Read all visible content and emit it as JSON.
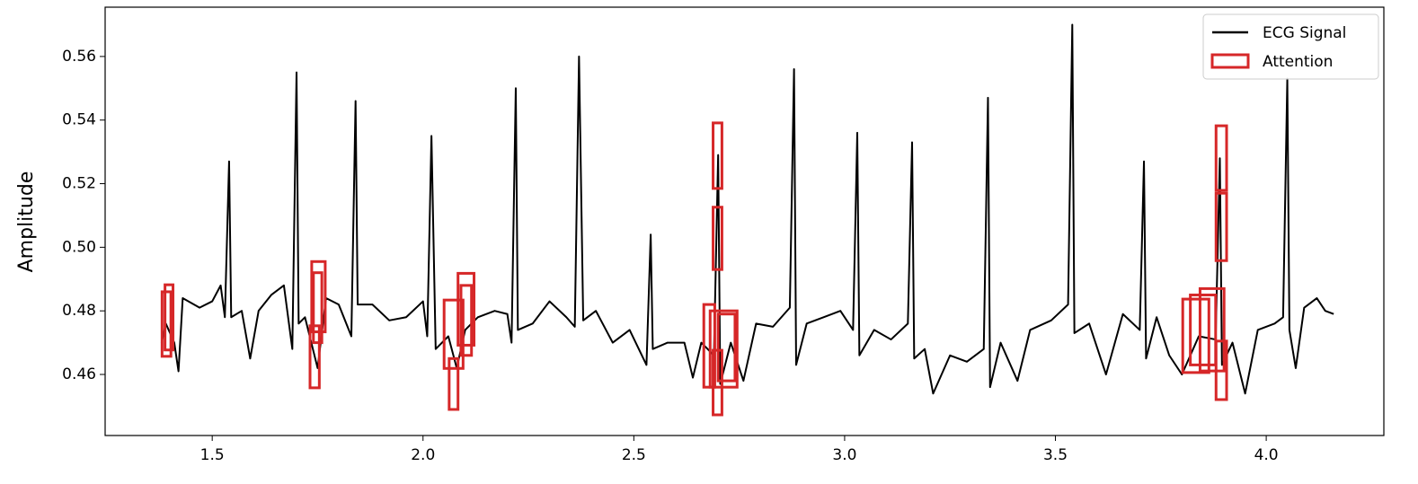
{
  "chart_data": {
    "type": "line",
    "ylabel": "Amplitude",
    "x": [
      1.38,
      1.39,
      1.41,
      1.42,
      1.43,
      1.47,
      1.5,
      1.52,
      1.53,
      1.54,
      1.545,
      1.57,
      1.59,
      1.61,
      1.64,
      1.67,
      1.69,
      1.7,
      1.705,
      1.72,
      1.75,
      1.77,
      1.8,
      1.83,
      1.84,
      1.845,
      1.88,
      1.92,
      1.96,
      2.0,
      2.01,
      2.02,
      2.03,
      2.06,
      2.08,
      2.1,
      2.13,
      2.17,
      2.2,
      2.21,
      2.22,
      2.225,
      2.26,
      2.3,
      2.34,
      2.36,
      2.37,
      2.38,
      2.41,
      2.45,
      2.49,
      2.53,
      2.54,
      2.545,
      2.58,
      2.62,
      2.64,
      2.66,
      2.69,
      2.7,
      2.705,
      2.73,
      2.76,
      2.79,
      2.83,
      2.87,
      2.88,
      2.885,
      2.91,
      2.95,
      2.99,
      3.02,
      3.03,
      3.035,
      3.07,
      3.11,
      3.15,
      3.16,
      3.165,
      3.19,
      3.21,
      3.25,
      3.29,
      3.33,
      3.34,
      3.345,
      3.37,
      3.41,
      3.44,
      3.49,
      3.53,
      3.54,
      3.545,
      3.58,
      3.62,
      3.66,
      3.7,
      3.71,
      3.715,
      3.74,
      3.77,
      3.8,
      3.84,
      3.88,
      3.89,
      3.895,
      3.92,
      3.95,
      3.98,
      4.02,
      4.04,
      4.05,
      4.055,
      4.07,
      4.09,
      4.12,
      4.14,
      4.16
    ],
    "series": [
      {
        "name": "ECG Signal",
        "color": "#000000",
        "values": [
          0.47,
          0.476,
          0.47,
          0.461,
          0.484,
          0.481,
          0.483,
          0.488,
          0.478,
          0.527,
          0.478,
          0.48,
          0.465,
          0.48,
          0.485,
          0.488,
          0.468,
          0.555,
          0.476,
          0.478,
          0.462,
          0.484,
          0.482,
          0.472,
          0.546,
          0.482,
          0.482,
          0.477,
          0.478,
          0.483,
          0.472,
          0.535,
          0.468,
          0.472,
          0.462,
          0.474,
          0.478,
          0.48,
          0.479,
          0.47,
          0.55,
          0.474,
          0.476,
          0.483,
          0.478,
          0.475,
          0.56,
          0.477,
          0.48,
          0.47,
          0.474,
          0.463,
          0.504,
          0.468,
          0.47,
          0.47,
          0.459,
          0.47,
          0.466,
          0.529,
          0.457,
          0.47,
          0.458,
          0.476,
          0.475,
          0.481,
          0.556,
          0.463,
          0.476,
          0.478,
          0.48,
          0.474,
          0.536,
          0.466,
          0.474,
          0.471,
          0.476,
          0.533,
          0.465,
          0.468,
          0.454,
          0.466,
          0.464,
          0.468,
          0.547,
          0.456,
          0.47,
          0.458,
          0.474,
          0.477,
          0.482,
          0.57,
          0.473,
          0.476,
          0.46,
          0.479,
          0.474,
          0.527,
          0.465,
          0.478,
          0.466,
          0.46,
          0.472,
          0.471,
          0.528,
          0.463,
          0.47,
          0.454,
          0.474,
          0.476,
          0.478,
          0.553,
          0.474,
          0.462,
          0.481,
          0.484,
          0.48,
          0.479
        ]
      }
    ],
    "attention": {
      "name": "Attention",
      "color": "#d62728",
      "boxes": [
        [
          1.381,
          1.402,
          0.4657,
          0.486
        ],
        [
          1.388,
          1.407,
          0.4677,
          0.4882
        ],
        [
          1.732,
          1.754,
          0.4558,
          0.4753
        ],
        [
          1.736,
          1.768,
          0.4734,
          0.4955
        ],
        [
          1.74,
          1.76,
          0.47,
          0.492
        ],
        [
          2.05,
          2.095,
          0.4619,
          0.4834
        ],
        [
          2.062,
          2.083,
          0.449,
          0.465
        ],
        [
          2.083,
          2.121,
          0.4692,
          0.4918
        ],
        [
          2.09,
          2.115,
          0.466,
          0.488
        ],
        [
          2.666,
          2.692,
          0.456,
          0.482
        ],
        [
          2.681,
          2.745,
          0.456,
          0.48
        ],
        [
          2.688,
          2.709,
          0.5185,
          0.5391
        ],
        [
          2.688,
          2.709,
          0.493,
          0.5126
        ],
        [
          2.688,
          2.709,
          0.4473,
          0.4676
        ],
        [
          2.7,
          2.74,
          0.458,
          0.479
        ],
        [
          3.802,
          3.864,
          0.4606,
          0.4837
        ],
        [
          3.843,
          3.9,
          0.4611,
          0.487
        ],
        [
          3.82,
          3.88,
          0.463,
          0.485
        ],
        [
          3.881,
          3.906,
          0.5179,
          0.5382
        ],
        [
          3.881,
          3.906,
          0.4958,
          0.517
        ],
        [
          3.881,
          3.906,
          0.4521,
          0.4705
        ]
      ]
    },
    "xlim": [
      1.246,
      4.279
    ],
    "ylim": [
      0.4408,
      0.5755
    ],
    "xticks": [
      1.5,
      {
        "value": 2.0,
        "label": "2.0"
      },
      2.5,
      {
        "value": 3.0,
        "label": "3.0"
      },
      3.5,
      {
        "value": 4.0,
        "label": "4.0"
      }
    ],
    "yticks": [
      0.46,
      0.48,
      {
        "value": 0.5,
        "label": "0.50"
      },
      0.52,
      0.54,
      0.56
    ],
    "legend": "upper right"
  }
}
